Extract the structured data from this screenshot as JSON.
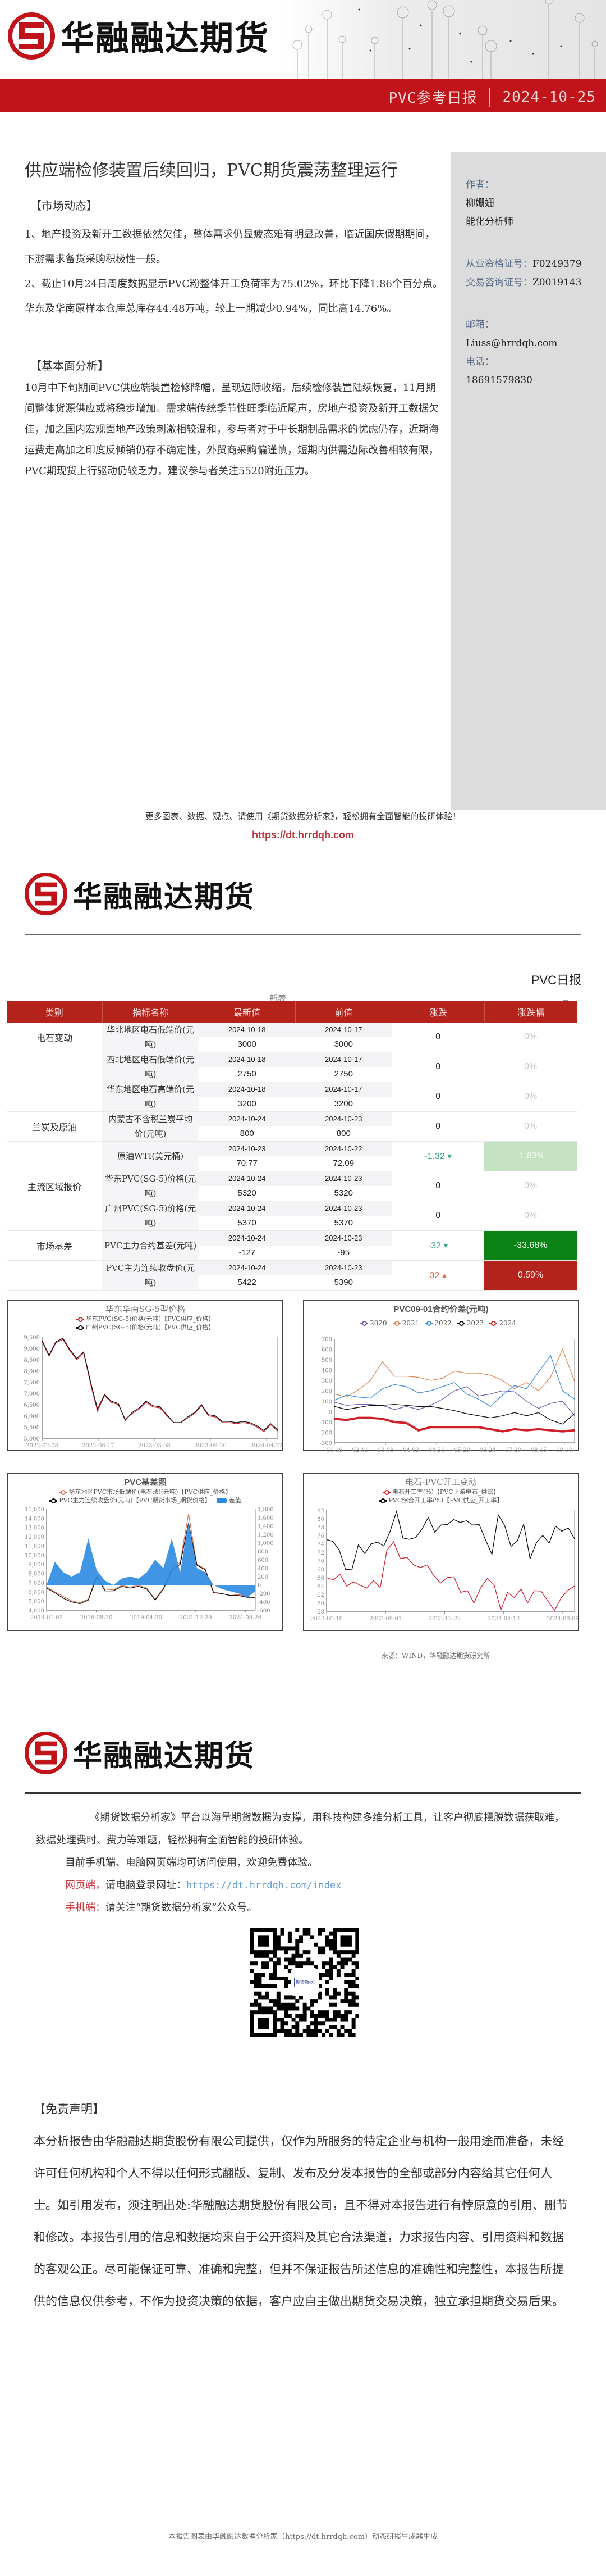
{
  "brand": {
    "name": "华融融达期货",
    "accent_color": "#c0141a"
  },
  "header": {
    "report_type": "PVC参考日报",
    "date": "2024-10-25"
  },
  "article": {
    "title": "供应端检修装置后续回归，PVC期货震荡整理运行",
    "market_section_title": "【市场动态】",
    "market_points": [
      "1、地产投资及新开工数据依然欠佳，整体需求仍显疲态难有明显改善，临近国庆假期期间，下游需求备货采购积极性一般。",
      "2、截止10月24日周度数据显示PVC粉整体开工负荷率为75.02%，环比下降1.86个百分点。华东及华南原样本仓库总库存44.48万吨，较上一期减少0.94%，同比高14.76%。"
    ],
    "analysis_section_title": "【基本面分析】",
    "analysis_text": "10月中下旬期间PVC供应端装置检修降幅，呈现边际收缩，后续检修装置陆续恢复，11月期间整体货源供应或将稳步增加。需求端传统季节性旺季临近尾声，房地产投资及新开工数据欠佳，加之国内宏观面地产政策刺激相较温和，参与者对于中长期制品需求的忧虑仍存，近期海运费走高加之印度反倾销仍存不确定性，外贸商采购偏谨慎，短期内供需边际改善相较有限，PVC期现货上行驱动仍较乏力，建议参与者关注5520附近压力。"
  },
  "author": {
    "author_label": "作者：",
    "name": "柳姗姗",
    "role": "能化分析师",
    "license_label": "从业资格证号：",
    "license_no": "F0249379",
    "advisory_label": "交易咨询证号：",
    "advisory_no": "Z0019143",
    "email_label": "邮箱：",
    "email": "Liuss@hrrdqh.com",
    "phone_label": "电话：",
    "phone": "18691579830"
  },
  "promo": {
    "line": "更多图表、数据、观点、请使用《期货数据分析家》，轻松拥有全面智能的投研体验！",
    "url": "https://dt.hrrdqh.com"
  },
  "page2": {
    "report_tag": "PVC日报",
    "table_caption": "新表",
    "table": {
      "headers": [
        "类别",
        "指标名称",
        "最新值",
        "前值",
        "涨跌",
        "涨跌幅"
      ],
      "rows": [
        {
          "category": "电石变动",
          "name": "华北地区电石低端价(元吨)",
          "latest_date": "2024-10-18",
          "latest_value": "3000",
          "prev_date": "2024-10-17",
          "prev_value": "3000",
          "change": "0",
          "change_pct": "0%",
          "direction": "flat"
        },
        {
          "category": "",
          "name": "西北地区电石低端价(元吨)",
          "latest_date": "2024-10-18",
          "latest_value": "2750",
          "prev_date": "2024-10-17",
          "prev_value": "2750",
          "change": "0",
          "change_pct": "0%",
          "direction": "flat"
        },
        {
          "category": "",
          "name": "华东地区电石高端价(元吨)",
          "latest_date": "2024-10-18",
          "latest_value": "3200",
          "prev_date": "2024-10-17",
          "prev_value": "3200",
          "change": "0",
          "change_pct": "0%",
          "direction": "flat"
        },
        {
          "category": "兰炭及原油",
          "name": "内蒙古不含税兰炭平均价(元吨)",
          "latest_date": "2024-10-24",
          "latest_value": "800",
          "prev_date": "2024-10-23",
          "prev_value": "800",
          "change": "0",
          "change_pct": "0%",
          "direction": "flat"
        },
        {
          "category": "",
          "name": "原油WTI(美元桶)",
          "latest_date": "2024-10-23",
          "latest_value": "70.77",
          "prev_date": "2024-10-22",
          "prev_value": "72.09",
          "change": "-1.32 ▾",
          "change_pct": "-1.83%",
          "direction": "down-light"
        },
        {
          "category": "主流区域报价",
          "name": "华东PVC(SG-5)价格(元吨)",
          "latest_date": "2024-10-24",
          "latest_value": "5320",
          "prev_date": "2024-10-23",
          "prev_value": "5320",
          "change": "0",
          "change_pct": "0%",
          "direction": "flat"
        },
        {
          "category": "",
          "name": "广州PVC(SG-5)价格(元吨)",
          "latest_date": "2024-10-24",
          "latest_value": "5370",
          "prev_date": "2024-10-23",
          "prev_value": "5370",
          "change": "0",
          "change_pct": "0%",
          "direction": "flat"
        },
        {
          "category": "市场基差",
          "name": "PVC主力合约基差(元吨)",
          "latest_date": "2024-10-24",
          "latest_value": "-127",
          "prev_date": "2024-10-23",
          "prev_value": "-95",
          "change": "-32 ▾",
          "change_pct": "-33.68%",
          "direction": "down"
        },
        {
          "category": "",
          "name": "PVC主力连续收盘价(元吨)",
          "latest_date": "2024-10-24",
          "latest_value": "5422",
          "prev_date": "2024-10-23",
          "prev_value": "5390",
          "change": "32 ▴",
          "change_pct": "0.59%",
          "direction": "up"
        }
      ]
    },
    "source": "来源：WIND，华融融达期货研究所"
  },
  "chart_data": [
    {
      "type": "line",
      "title": "华东华南SG-5型价格",
      "series": [
        {
          "name": "华东PVC(SG-5)价格(元吨)【PVC供应_价格】",
          "color": "#d0202a",
          "values": [
            9300,
            8650,
            9250,
            9400,
            8900,
            8500,
            8800,
            7400,
            6200,
            6900,
            6600,
            6500,
            5850,
            6100,
            6300,
            6600,
            6400,
            6350,
            6000,
            5700,
            5700,
            5900,
            6100,
            6450,
            6000,
            5950,
            5700,
            5700,
            5650,
            5700,
            5650,
            5500,
            5300,
            5600,
            5320
          ]
        },
        {
          "name": "广州PVC(SG-5)价格(元吨)【PVC供应_价格】",
          "color": "#111111",
          "values": [
            9350,
            8700,
            9300,
            9450,
            8950,
            8550,
            8850,
            7500,
            6300,
            6950,
            6650,
            6550,
            5800,
            6150,
            6350,
            6650,
            6450,
            6400,
            6050,
            5700,
            5700,
            5950,
            6150,
            6500,
            6050,
            6000,
            5750,
            5750,
            5700,
            5750,
            5700,
            5550,
            5350,
            5650,
            5370
          ]
        }
      ],
      "x_ticks": [
        "2022-02-08",
        "2022-08-17",
        "2023-03-08",
        "2023-09-20",
        "2024-04-22"
      ],
      "y_ticks": [
        "5,000",
        "5,500",
        "6,000",
        "6,500",
        "7,000",
        "7,500",
        "8,000",
        "8,500",
        "9,000",
        "9,500"
      ],
      "ylim": [
        5000,
        9500
      ]
    },
    {
      "type": "line",
      "title": "PVC09-01合约价差(元吨)",
      "series": [
        {
          "name": "2020",
          "color": "#7b5fb8",
          "values": [
            90,
            60,
            70,
            70,
            60,
            20,
            50,
            20,
            60,
            120,
            200,
            240,
            150,
            170,
            200,
            190,
            100,
            30,
            80,
            100,
            -40
          ]
        },
        {
          "name": "2021",
          "color": "#e08a55",
          "values": [
            170,
            140,
            210,
            300,
            480,
            340,
            340,
            330,
            300,
            320,
            390,
            370,
            370,
            350,
            300,
            220,
            280,
            200,
            330,
            600,
            290
          ]
        },
        {
          "name": "2022",
          "color": "#3a8fd8",
          "values": [
            110,
            160,
            140,
            130,
            220,
            260,
            240,
            180,
            200,
            240,
            280,
            170,
            120,
            50,
            160,
            250,
            220,
            380,
            540,
            200,
            120
          ]
        },
        {
          "name": "2023",
          "color": "#111111",
          "values": [
            50,
            20,
            40,
            60,
            60,
            70,
            60,
            50,
            50,
            30,
            10,
            -20,
            -40,
            -60,
            -40,
            -10,
            -40,
            -10,
            -80,
            -120,
            -18
          ]
        },
        {
          "name": "2024",
          "color": "#d0202a",
          "values": [
            -70,
            -80,
            -60,
            -60,
            -70,
            -100,
            -110,
            -180,
            -150,
            -150,
            -150,
            -150,
            -150,
            -170,
            -190,
            -170,
            -180,
            -170,
            -180,
            -190,
            -180
          ]
        }
      ],
      "x_ticks": [
        "01-16",
        "02-11",
        "03-08",
        "04-03",
        "04-30",
        "05-29",
        "06-24",
        "07-20",
        "08-15",
        "09-10"
      ],
      "y_ticks": [
        "-300",
        "-200",
        "-100",
        "0",
        "100",
        "200",
        "300",
        "400",
        "500",
        "600",
        "700"
      ],
      "ylim": [
        -300,
        700
      ],
      "annotation": "-18"
    },
    {
      "type": "line",
      "title": "PVC基差图",
      "series": [
        {
          "name": "华东地区PVC市场低端价(电石法)(元吨)【PVC供应_价格】",
          "color": "#e07050",
          "axis": "left",
          "values": [
            6500,
            6000,
            5500,
            5000,
            4800,
            5200,
            7800,
            6300,
            6200,
            6700,
            6500,
            6700,
            6400,
            5200,
            6400,
            8500,
            9200,
            14500,
            9000,
            8500,
            6000,
            5800,
            5600,
            5700,
            5500,
            5300
          ]
        },
        {
          "name": "PVC主力连续收盘价(元吨)【PVC期货市场_期货价格】",
          "color": "#111111",
          "axis": "left",
          "values": [
            6400,
            5900,
            5300,
            4900,
            4700,
            5100,
            7600,
            6100,
            6100,
            6600,
            6400,
            6600,
            6300,
            5100,
            6300,
            8300,
            9000,
            13500,
            8900,
            8400,
            5900,
            5800,
            5600,
            5600,
            5400,
            5400
          ]
        },
        {
          "name": "差值",
          "color": "#2b8be2",
          "type": "area",
          "axis": "right",
          "values": [
            0,
            550,
            300,
            200,
            300,
            1100,
            350,
            100,
            0,
            150,
            200,
            150,
            300,
            600,
            400,
            1100,
            300,
            1500,
            400,
            300,
            0,
            -100,
            -150,
            -200,
            -300,
            -150
          ]
        }
      ],
      "x_ticks": [
        "2014-01-02",
        "2016-08-30",
        "2019-04-30",
        "2021-12-29",
        "2024-08-26"
      ],
      "y_ticks_left": [
        "4,000",
        "5,000",
        "6,000",
        "7,000",
        "8,000",
        "9,000",
        "10,000",
        "11,000",
        "12,000",
        "13,000",
        "14,000",
        "15,000"
      ],
      "y_ticks_right": [
        "-600",
        "-400",
        "-200",
        "0",
        "200",
        "400",
        "600",
        "800",
        "1,000",
        "1,200",
        "1,400",
        "1,600",
        "1,800"
      ],
      "ylim_left": [
        4000,
        15000
      ],
      "ylim_right": [
        -600,
        1800
      ]
    },
    {
      "type": "line",
      "title": "电石-PVC开工变动",
      "series": [
        {
          "name": "电石开工率(%)【PVC上游电石_供需】",
          "color": "#d0202a",
          "values": [
            66,
            65.5,
            66.8,
            64,
            65,
            64.2,
            63.5,
            65.3,
            63.6,
            72.5,
            74.5,
            70.5,
            70.8,
            69,
            68.4,
            69,
            66.5,
            64.7,
            66,
            66.2,
            62.5,
            62.9,
            60,
            63.6,
            65.8,
            64.3,
            58.3,
            62.5,
            61.3,
            63.3,
            60,
            62.9,
            62.8,
            60.5,
            58.2,
            61.2,
            63,
            64
          ]
        },
        {
          "name": "PVC综合开工率(%)【PVC供应_开工率】",
          "color": "#111111",
          "values": [
            75,
            74.6,
            72.5,
            67.9,
            68,
            73.8,
            71.7,
            74,
            74.4,
            73.5,
            77,
            81.7,
            75.4,
            75.1,
            75.5,
            77.5,
            80.3,
            76.8,
            78.5,
            78.6,
            79.8,
            79.1,
            79.5,
            78.5,
            78.6,
            75,
            71.5,
            80.9,
            78.4,
            73.4,
            74.7,
            78.7,
            70.5,
            74.3,
            76,
            74.2,
            78.2,
            77,
            77.8,
            75.2
          ]
        }
      ],
      "x_ticks": [
        "2023-05-18",
        "2023-09-01",
        "2023-12-22",
        "2024-04-12",
        "2024-08-09"
      ],
      "y_ticks": [
        "58",
        "60",
        "62",
        "64",
        "66",
        "68",
        "70",
        "72",
        "74",
        "76",
        "78",
        "80",
        "82"
      ],
      "ylim": [
        58,
        82
      ]
    }
  ],
  "page3": {
    "intro_line1": "《期货数据分析家》平台以海量期货数据为支撑，用科技构建多维分析工具，让客户彻底摆脱数据获取难，数据处理费时、费力等难题，轻松拥有全面智能的投研体验。",
    "intro_line2": "目前手机端、电脑网页端均可访问使用，欢迎免费体验。",
    "web_label": "网页端，",
    "web_text": "请电脑登录网址：",
    "web_url": "https://dt.hrrdqh.com/index",
    "mobile_label": "手机端：",
    "mobile_text": "请关注“期货数据分析家”公众号。",
    "qr_center_text": "期货数据"
  },
  "disclaimer": {
    "title": "【免责声明】",
    "text": "本分析报告由华融融达期货股份有限公司提供，仅作为所服务的特定企业与机构一般用途而准备，未经许可任何机构和个人不得以任何形式翻版、复制、发布及分发本报告的全部或部分内容给其它任何人士。如引用发布，须注明出处:华融融达期货股份有限公司，且不得对本报告进行有悖原意的引用、删节和修改。本报告引用的信息和数据均来自于公开资料及其它合法渠道，力求报告内容、引用资料和数据的客观公正。尽可能保证可靠、准确和完整，但并不保证报告所述信息的准确性和完整性，本报告所提供的信息仅供参考，不作为投资决策的依据，客户应自主做出期货交易决策，独立承担期货交易后果。"
  },
  "footer": {
    "note": "本报告图表由华融融达数据分析家（https://dt.hrrdqh.com）动态研报生成器生成"
  }
}
